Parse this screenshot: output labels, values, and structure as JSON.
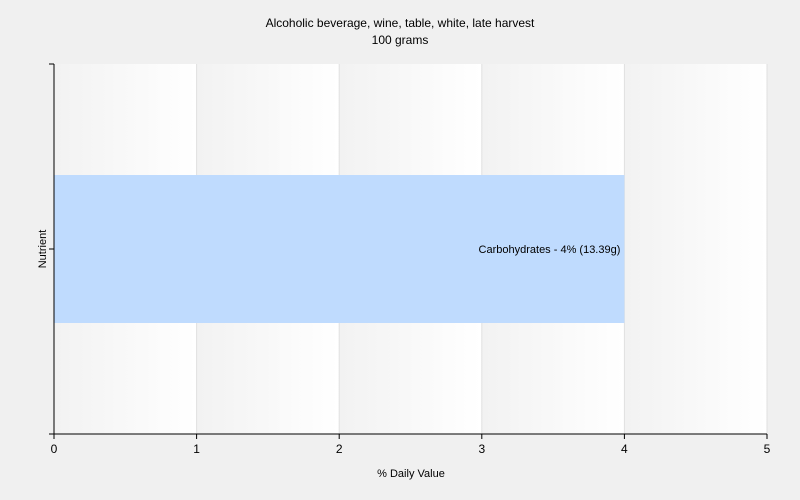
{
  "chart_data": {
    "type": "bar",
    "orientation": "horizontal",
    "title": "Alcoholic beverage, wine, table, white, late harvest",
    "subtitle": "100 grams",
    "xlabel": "% Daily Value",
    "ylabel": "Nutrient",
    "xlim": [
      0,
      5
    ],
    "xticks": [
      0,
      1,
      2,
      3,
      4,
      5
    ],
    "grid": true,
    "bars": [
      {
        "category": "Carbohydrates",
        "value": 4,
        "label": "Carbohydrates - 4% (13.39g)"
      }
    ],
    "colors": {
      "bar": "#bfdbfe",
      "background": "#f0f0f0",
      "plot_light": "#ffffff",
      "grid": "#e0e0e0",
      "axis": "#000000"
    }
  }
}
